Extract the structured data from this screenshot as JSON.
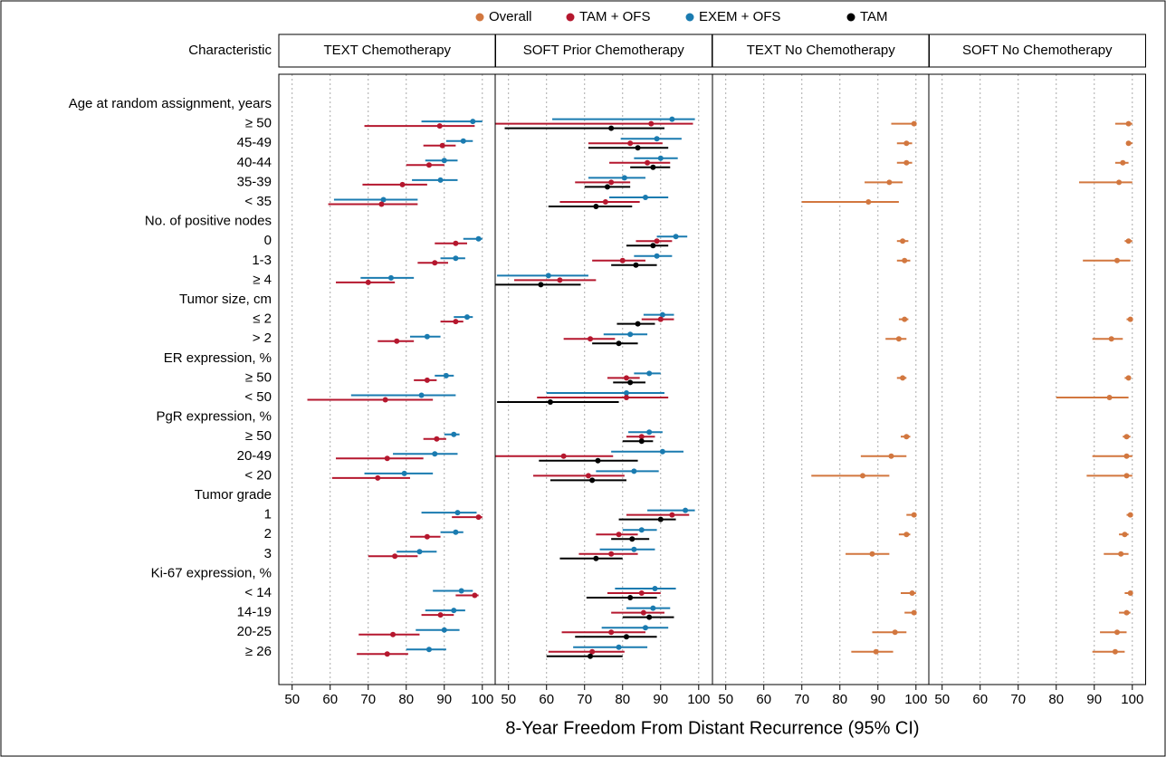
{
  "chart_data": {
    "type": "forest",
    "legend": [
      {
        "name": "Overall",
        "color": "#d2773f"
      },
      {
        "name": "TAM + OFS",
        "color": "#b5172e"
      },
      {
        "name": "EXEM + OFS",
        "color": "#1a7bb0"
      },
      {
        "name": "TAM",
        "color": "#000000"
      }
    ],
    "row_header": "Characteristic",
    "categories": [
      "Age at random assignment, years",
      "≥ 50",
      "45-49",
      "40-44",
      "35-39",
      "< 35",
      "No. of positive nodes",
      "0",
      "1-3",
      "≥ 4",
      "Tumor size, cm",
      "≤ 2",
      "> 2",
      "ER expression, %",
      "≥ 50",
      "< 50",
      "PgR expression, %",
      "≥ 50",
      "20-49",
      "< 20",
      "Tumor grade",
      "1",
      "2",
      "3",
      "Ki-67 expression, %",
      "< 14",
      "14-19",
      "20-25",
      "≥ 26"
    ],
    "xlabel": "8-Year Freedom From Distant Recurrence (95% CI)",
    "xlim": [
      46.5,
      103.5
    ],
    "xticks": [
      50,
      60,
      70,
      80,
      90,
      100
    ],
    "grid": true,
    "panels": [
      {
        "title": "TEXT Chemotherapy",
        "series": [
          {
            "name": "EXEM + OFS",
            "color": "#1a7bb0",
            "values": [
              null,
              97.5,
              95,
              90,
              89,
              74,
              null,
              99,
              93,
              76,
              null,
              96,
              85.5,
              null,
              90.5,
              84,
              null,
              92.5,
              87.5,
              79.5,
              null,
              93.5,
              93,
              83.5,
              null,
              94.5,
              92.5,
              90,
              86
            ],
            "lower": [
              null,
              84,
              90.5,
              85,
              81.5,
              61,
              null,
              95,
              89,
              68,
              null,
              92.5,
              81,
              null,
              87.5,
              65.5,
              null,
              90,
              76.5,
              69,
              null,
              84,
              89,
              77.5,
              null,
              87,
              85,
              82.5,
              80
            ],
            "upper": [
              null,
              100,
              97.5,
              93.5,
              93.5,
              83,
              null,
              100,
              95.5,
              82,
              null,
              97.5,
              89,
              null,
              92.5,
              93,
              null,
              94,
              93.5,
              87,
              null,
              98.5,
              95,
              88,
              null,
              97.5,
              95.5,
              94,
              90.5
            ]
          },
          {
            "name": "TAM + OFS",
            "color": "#b5172e",
            "values": [
              null,
              88.8,
              89.5,
              86,
              79,
              73.5,
              null,
              93,
              87.5,
              70,
              null,
              93,
              77.5,
              null,
              85.5,
              74.5,
              null,
              88,
              75,
              72.5,
              null,
              99,
              85.5,
              77,
              null,
              98,
              89,
              76.5,
              75
            ],
            "lower": [
              null,
              69,
              84.5,
              80,
              68.5,
              59.5,
              null,
              87.5,
              83,
              61.5,
              null,
              89,
              72.5,
              null,
              82,
              54,
              null,
              84.5,
              61.5,
              60.5,
              null,
              92,
              81,
              70,
              null,
              93,
              84,
              67.5,
              67
            ],
            "upper": [
              null,
              98,
              93,
              90,
              85.5,
              83,
              null,
              96,
              91,
              77,
              null,
              95,
              82,
              null,
              88,
              87,
              null,
              90.5,
              84.5,
              81,
              null,
              100,
              89,
              83,
              null,
              99,
              92.5,
              83.5,
              80.5
            ]
          }
        ]
      },
      {
        "title": "SOFT Prior Chemotherapy",
        "series": [
          {
            "name": "EXEM + OFS",
            "color": "#1a7bb0",
            "values": [
              null,
              93,
              89,
              90,
              80.5,
              86,
              null,
              94,
              89,
              60.5,
              null,
              90.5,
              82,
              null,
              87,
              81,
              null,
              87,
              90.5,
              83,
              null,
              96.5,
              85,
              83,
              null,
              88.5,
              88,
              86,
              79
            ],
            "lower": [
              null,
              61.5,
              79.5,
              83,
              71,
              76.5,
              null,
              89,
              83,
              47,
              null,
              85.5,
              75,
              null,
              83,
              60,
              null,
              81.5,
              77,
              73,
              null,
              86.5,
              80,
              74,
              null,
              78,
              81,
              74.5,
              67
            ],
            "upper": [
              null,
              99,
              95.5,
              94.5,
              86,
              92,
              null,
              97,
              93,
              71,
              null,
              93.5,
              86.5,
              null,
              90,
              91,
              null,
              90.5,
              96,
              89.5,
              null,
              99,
              89,
              88.5,
              null,
              94,
              92.5,
              92,
              86.5
            ]
          },
          {
            "name": "TAM + OFS",
            "color": "#b5172e",
            "values": [
              null,
              87.5,
              82,
              86.5,
              77,
              75.5,
              null,
              89,
              80,
              63.5,
              null,
              90,
              71.5,
              null,
              81,
              81,
              null,
              85,
              64.5,
              71,
              null,
              93,
              79,
              77,
              null,
              85,
              85.5,
              77,
              72
            ],
            "lower": [
              null,
              46.5,
              71,
              76.5,
              67.5,
              63.5,
              null,
              83.5,
              72,
              51.5,
              null,
              85,
              64.5,
              null,
              76,
              57.5,
              null,
              81,
              46.5,
              56.5,
              null,
              81,
              73,
              68.5,
              null,
              76,
              77,
              64,
              60.5
            ],
            "upper": [
              null,
              98.5,
              90.5,
              92.5,
              82,
              84.5,
              null,
              93,
              86,
              73,
              null,
              93.5,
              78,
              null,
              84.5,
              92,
              null,
              88.5,
              77.5,
              80.5,
              null,
              97.5,
              84,
              84,
              null,
              90,
              91,
              86,
              80.5
            ]
          },
          {
            "name": "TAM",
            "color": "#000000",
            "values": [
              null,
              77,
              84,
              88,
              76,
              73,
              null,
              88,
              83.5,
              58.5,
              null,
              84,
              79,
              null,
              82,
              61,
              null,
              85,
              73.5,
              72,
              null,
              90,
              82.5,
              73,
              null,
              82,
              87,
              81,
              71.5
            ],
            "lower": [
              null,
              49,
              71,
              82,
              70,
              60.5,
              null,
              81,
              77,
              46.5,
              null,
              78.5,
              72,
              null,
              77.5,
              47,
              null,
              80,
              58,
              61,
              null,
              79,
              77,
              63.5,
              null,
              70.5,
              80,
              67.5,
              60
            ],
            "upper": [
              null,
              91,
              92,
              92.5,
              82,
              82.5,
              null,
              92,
              89,
              69,
              null,
              88.5,
              84,
              null,
              86,
              79,
              null,
              88,
              84,
              81,
              null,
              94,
              87,
              80,
              null,
              89,
              93.5,
              89,
              80
            ]
          }
        ]
      },
      {
        "title": "TEXT No Chemotherapy",
        "series": [
          {
            "name": "Overall",
            "color": "#d2773f",
            "values": [
              null,
              99.5,
              97.5,
              97.5,
              93,
              87.5,
              null,
              96.5,
              97,
              null,
              null,
              97,
              95.5,
              null,
              96.5,
              null,
              null,
              97.5,
              93.5,
              86,
              null,
              99.5,
              97.5,
              88.5,
              null,
              99,
              99.5,
              94.5,
              89.5
            ],
            "lower": [
              null,
              93.5,
              95,
              95,
              86.5,
              70,
              null,
              95,
              95,
              null,
              null,
              95.5,
              92,
              null,
              95,
              null,
              null,
              96,
              85.5,
              72.5,
              null,
              97.5,
              95.5,
              81.5,
              null,
              96,
              97,
              88.5,
              83
            ],
            "upper": [
              null,
              100,
              99,
              99,
              96.5,
              95.5,
              null,
              98,
              98.5,
              null,
              null,
              98,
              97.5,
              null,
              97.5,
              null,
              null,
              98.5,
              97.5,
              93,
              null,
              100,
              98.5,
              93,
              null,
              100,
              100,
              97.5,
              94
            ]
          }
        ]
      },
      {
        "title": "SOFT No Chemotherapy",
        "series": [
          {
            "name": "Overall",
            "color": "#d2773f",
            "values": [
              null,
              99,
              99,
              97.5,
              96.5,
              null,
              null,
              99,
              96,
              null,
              null,
              99.5,
              94.5,
              null,
              99,
              94,
              null,
              98.5,
              98.5,
              98.5,
              null,
              99.5,
              98,
              97,
              null,
              99.5,
              98.5,
              96,
              95.5
            ],
            "lower": [
              null,
              95.5,
              98.5,
              95.5,
              86,
              null,
              null,
              98,
              87,
              null,
              null,
              98.5,
              89.5,
              null,
              98,
              80,
              null,
              97.5,
              89.5,
              88,
              null,
              98.5,
              96.5,
              92.5,
              null,
              98,
              96.5,
              91.5,
              89.5
            ],
            "upper": [
              null,
              100,
              100,
              99,
              100,
              null,
              null,
              100,
              99.5,
              null,
              null,
              100,
              97.5,
              null,
              99.5,
              99,
              null,
              99.5,
              100,
              100,
              null,
              100,
              99,
              99,
              null,
              100,
              99.5,
              98.5,
              98
            ]
          }
        ]
      }
    ]
  }
}
